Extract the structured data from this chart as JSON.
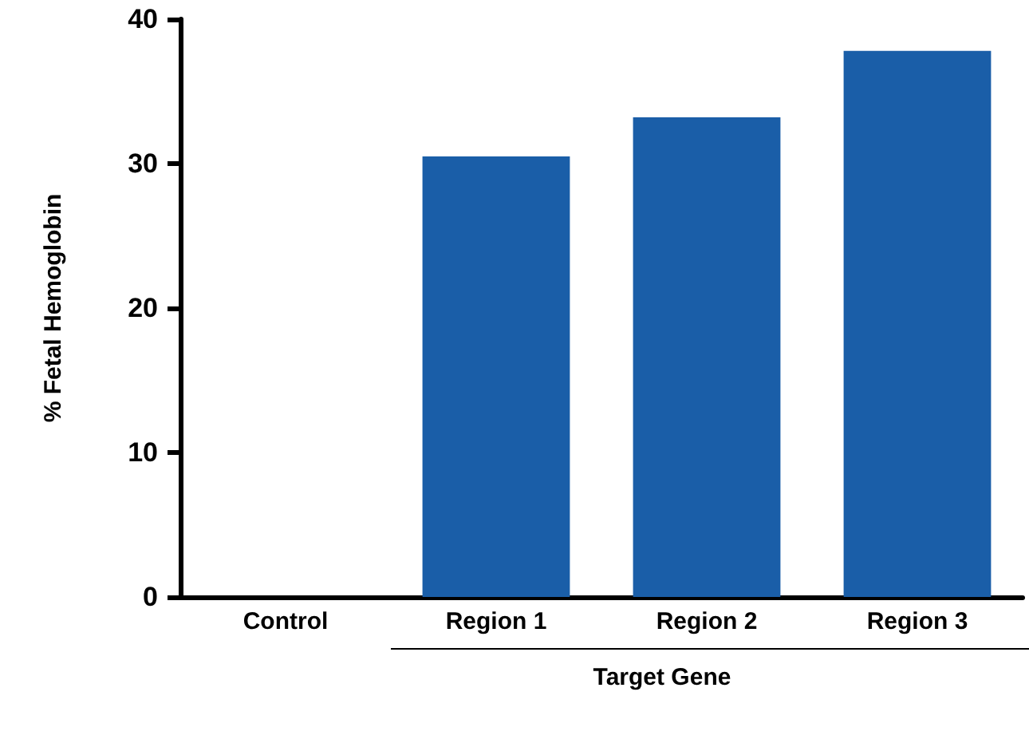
{
  "chart_data": {
    "type": "bar",
    "ylabel": "% Fetal Hemoglobin",
    "categories": [
      "Control",
      "Region 1",
      "Region 2",
      "Region 3"
    ],
    "values": [
      0,
      30.5,
      33.2,
      37.8
    ],
    "color": "#1a5ea8",
    "ylim": [
      0,
      40
    ],
    "yticks": [
      0,
      10,
      20,
      30,
      40
    ],
    "grid": false,
    "annotations": [
      "Target Gene"
    ]
  }
}
